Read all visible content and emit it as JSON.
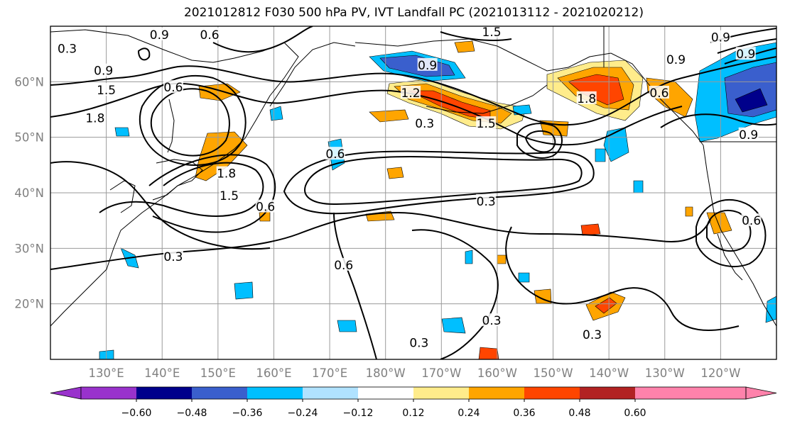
{
  "title": "2021012812 F030 500 hPa PV, IVT Landfall PC (2021013112 - 2021020212)",
  "map": {
    "lon_range": [
      120,
      250
    ],
    "lat_range": [
      10,
      70
    ],
    "lon_ticks": [
      {
        "lon": 130,
        "label": "130°E"
      },
      {
        "lon": 140,
        "label": "140°E"
      },
      {
        "lon": 150,
        "label": "150°E"
      },
      {
        "lon": 160,
        "label": "160°E"
      },
      {
        "lon": 170,
        "label": "170°E"
      },
      {
        "lon": 180,
        "label": "180°W"
      },
      {
        "lon": 190,
        "label": "170°W"
      },
      {
        "lon": 200,
        "label": "160°W"
      },
      {
        "lon": 210,
        "label": "150°W"
      },
      {
        "lon": 220,
        "label": "140°W"
      },
      {
        "lon": 230,
        "label": "130°W"
      },
      {
        "lon": 240,
        "label": "120°W"
      }
    ],
    "lat_ticks": [
      {
        "lat": 20,
        "label": "20°N"
      },
      {
        "lat": 30,
        "label": "30°N"
      },
      {
        "lat": 40,
        "label": "40°N"
      },
      {
        "lat": 50,
        "label": "50°N"
      },
      {
        "lat": 60,
        "label": "60°N"
      }
    ],
    "contour_labels": [
      {
        "text": "0.9",
        "lon": 139.5,
        "lat": 68.5
      },
      {
        "text": "0.6",
        "lon": 148.5,
        "lat": 68.5
      },
      {
        "text": "0.3",
        "lon": 123,
        "lat": 66
      },
      {
        "text": "0.9",
        "lon": 129.5,
        "lat": 62
      },
      {
        "text": "1.5",
        "lon": 130,
        "lat": 58.5
      },
      {
        "text": "1.8",
        "lon": 128,
        "lat": 53.5
      },
      {
        "text": "0.6",
        "lon": 142,
        "lat": 59
      },
      {
        "text": "1.8",
        "lon": 151.5,
        "lat": 43.5
      },
      {
        "text": "1.5",
        "lon": 152,
        "lat": 39.5
      },
      {
        "text": "0.6",
        "lon": 158.5,
        "lat": 37.5
      },
      {
        "text": "0.3",
        "lon": 142,
        "lat": 28.5
      },
      {
        "text": "0.6",
        "lon": 171,
        "lat": 47
      },
      {
        "text": "1.2",
        "lon": 184.5,
        "lat": 58
      },
      {
        "text": "0.3",
        "lon": 187,
        "lat": 52.5
      },
      {
        "text": "0.9",
        "lon": 187.5,
        "lat": 63
      },
      {
        "text": "1.5",
        "lon": 198,
        "lat": 52.5
      },
      {
        "text": "1.5",
        "lon": 199,
        "lat": 69
      },
      {
        "text": "0.3",
        "lon": 198,
        "lat": 38.5
      },
      {
        "text": "0.6",
        "lon": 172.5,
        "lat": 27
      },
      {
        "text": "0.3",
        "lon": 199,
        "lat": 17
      },
      {
        "text": "0.3",
        "lon": 186,
        "lat": 13
      },
      {
        "text": "0.3",
        "lon": 217,
        "lat": 14.5
      },
      {
        "text": "1.8",
        "lon": 216,
        "lat": 57
      },
      {
        "text": "0.6",
        "lon": 229,
        "lat": 58
      },
      {
        "text": "0.9",
        "lon": 232,
        "lat": 64
      },
      {
        "text": "0.9",
        "lon": 240,
        "lat": 68
      },
      {
        "text": "0.9",
        "lon": 244.5,
        "lat": 65
      },
      {
        "text": "0.9",
        "lon": 245,
        "lat": 50.5
      },
      {
        "text": "0.6",
        "lon": 245.5,
        "lat": 35
      }
    ]
  },
  "colorbar": {
    "colors": [
      "#9932CC",
      "#00008B",
      "#3A5FCD",
      "#00BFFF",
      "#B0E2FF",
      "#FFFFFF",
      "#FFEC8B",
      "#FFA500",
      "#FF4500",
      "#B22222",
      "#FF82AB",
      "#FF82AB"
    ],
    "ticks": [
      "−0.60",
      "−0.48",
      "−0.36",
      "−0.24",
      "−0.12",
      "0.12",
      "0.24",
      "0.36",
      "0.48",
      "0.60"
    ]
  },
  "colors": {
    "contour": "#000000",
    "grid": "#9a9a9a",
    "pos_light": "#FFEC8B",
    "pos_mid": "#FFA500",
    "pos_strong": "#FF4500",
    "pos_max": "#B22222",
    "neg_light": "#B0E2FF",
    "neg_mid": "#00BFFF",
    "neg_strong": "#3A5FCD",
    "neg_max": "#00008B"
  }
}
